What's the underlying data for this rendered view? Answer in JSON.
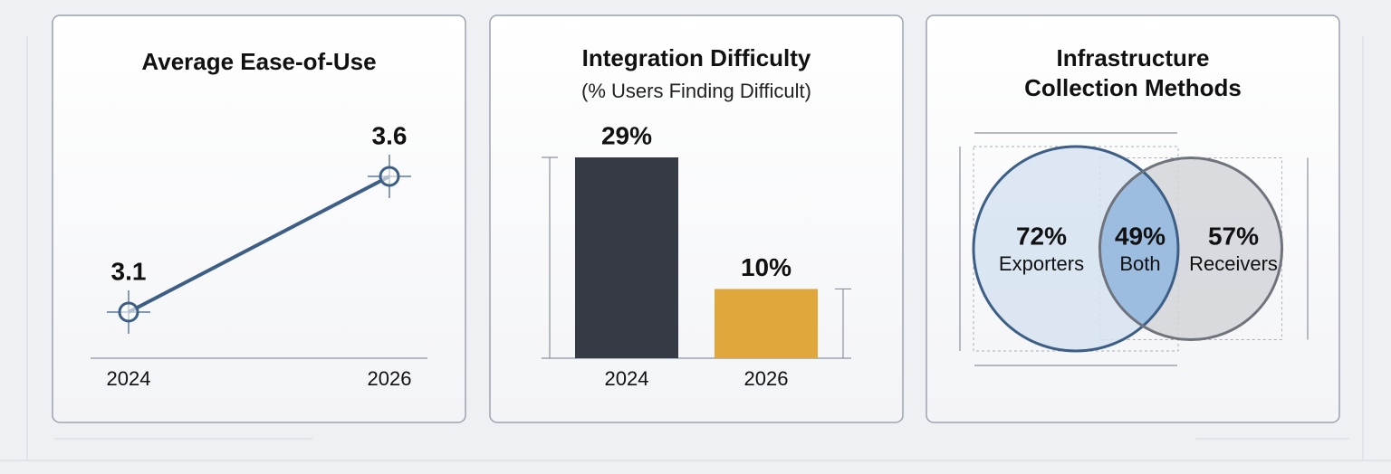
{
  "chart_data": [
    {
      "type": "line",
      "title": "Average Ease-of-Use",
      "categories": [
        "2024",
        "2026"
      ],
      "values": [
        3.1,
        3.6
      ],
      "color": "#3d5f86"
    },
    {
      "type": "bar",
      "title": "Integration Difficulty",
      "subtitle": "(% Users Finding Difficult)",
      "categories": [
        "2024",
        "2026"
      ],
      "values": [
        29,
        10
      ],
      "value_labels": [
        "29%",
        "10%"
      ],
      "colors": [
        "#363a45",
        "#e0a73c"
      ]
    },
    {
      "type": "venn",
      "title": "Infrastructure Collection Methods",
      "categories": [
        "Exporters",
        "Both",
        "Receivers"
      ],
      "values": [
        72,
        49,
        57
      ],
      "value_labels": [
        "72%",
        "49%",
        "57%"
      ],
      "colors": [
        "#d6e3f1",
        "#9dbde0",
        "#d3d5d9"
      ]
    }
  ]
}
